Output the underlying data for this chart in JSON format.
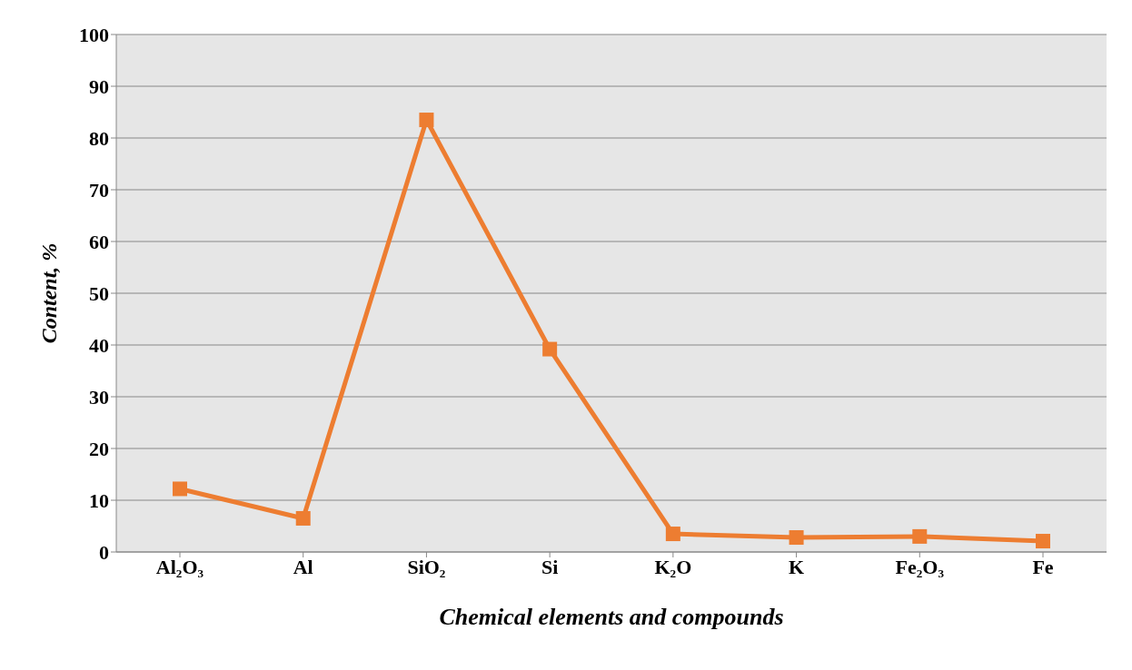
{
  "chart_data": {
    "type": "line",
    "xlabel": "Chemical elements and compounds",
    "ylabel": "Content, %",
    "categories": [
      "Al₂O₃",
      "Al",
      "SiO₂",
      "Si",
      "K₂O",
      "K",
      "Fe₂O₃",
      "Fe"
    ],
    "series": [
      {
        "color": "#ed7d31",
        "values": [
          12.2,
          6.5,
          83.5,
          39.2,
          3.5,
          2.8,
          3.0,
          2.1
        ]
      }
    ],
    "ylim": [
      0,
      100
    ],
    "yticks": [
      0,
      10,
      20,
      30,
      40,
      50,
      60,
      70,
      80,
      90,
      100
    ],
    "grid": "y",
    "marker": "square",
    "line_style": "solid"
  }
}
